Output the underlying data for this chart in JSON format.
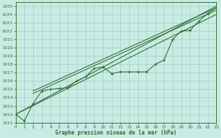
{
  "xlabel": "Graphe pression niveau de la mer (hPa)",
  "bg_color": "#c8ece4",
  "grid_color": "#a0ccc0",
  "line_color": "#2d6e2d",
  "ylim": [
    1011,
    1025.5
  ],
  "xlim": [
    0,
    23
  ],
  "yticks": [
    1011,
    1012,
    1013,
    1014,
    1015,
    1016,
    1017,
    1018,
    1019,
    1020,
    1021,
    1022,
    1023,
    1024,
    1025
  ],
  "xticks": [
    0,
    1,
    2,
    3,
    4,
    5,
    6,
    7,
    8,
    9,
    10,
    11,
    12,
    13,
    14,
    15,
    16,
    17,
    18,
    19,
    20,
    21,
    22,
    23
  ],
  "main_data": [
    1012.0,
    1011.2,
    1013.3,
    1014.8,
    1015.0,
    1015.1,
    1015.2,
    1016.0,
    1016.5,
    1017.5,
    1017.7,
    1016.9,
    1017.1,
    1017.1,
    1017.1,
    1017.1,
    1018.0,
    1018.5,
    1021.0,
    1022.0,
    1022.1,
    1023.2,
    1024.1,
    1024.8
  ],
  "line_upper": [
    [
      0,
      1012.0
    ],
    [
      23,
      1025.0
    ]
  ],
  "line_lower": [
    [
      0,
      1012.0
    ],
    [
      23,
      1024.0
    ]
  ],
  "line_mid": [
    [
      2,
      1014.8
    ],
    [
      23,
      1024.8
    ]
  ],
  "line_mid2": [
    [
      2,
      1014.5
    ],
    [
      23,
      1024.5
    ]
  ]
}
